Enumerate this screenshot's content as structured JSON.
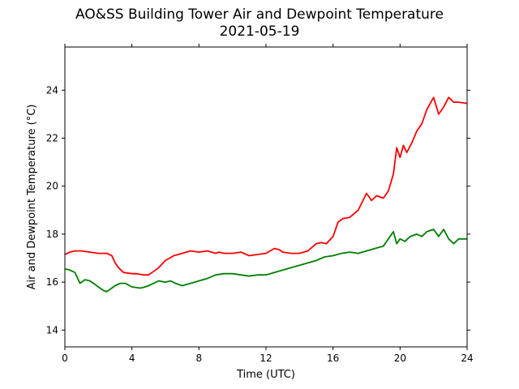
{
  "chart_data": {
    "type": "line",
    "title": "AO&SS Building Tower Air and Dewpoint Temperature",
    "subtitle": "2021-05-19",
    "xlabel": "Time (UTC)",
    "ylabel": "Air and Dewpoint Temperature (°C)",
    "xlim": [
      0,
      24
    ],
    "ylim": [
      13.3,
      25.8
    ],
    "xticks": [
      0,
      4,
      8,
      12,
      16,
      20,
      24
    ],
    "yticks": [
      14,
      16,
      18,
      20,
      22,
      24
    ],
    "grid": false,
    "series": [
      {
        "color": "#ff0000",
        "x": [
          0,
          0.3,
          0.6,
          1.0,
          1.5,
          2.0,
          2.5,
          2.8,
          3.0,
          3.2,
          3.5,
          4.0,
          4.3,
          4.7,
          5.0,
          5.3,
          5.6,
          6.0,
          6.5,
          7.0,
          7.5,
          8.0,
          8.5,
          9.0,
          9.2,
          9.5,
          10.0,
          10.5,
          11.0,
          11.5,
          12.0,
          12.5,
          12.8,
          13.0,
          13.5,
          14.0,
          14.5,
          15.0,
          15.3,
          15.6,
          16.0,
          16.3,
          16.6,
          17.0,
          17.5,
          18.0,
          18.3,
          18.6,
          19.0,
          19.3,
          19.6,
          19.8,
          20.0,
          20.2,
          20.4,
          20.7,
          21.0,
          21.3,
          21.6,
          22.0,
          22.3,
          22.6,
          22.9,
          23.2,
          23.5,
          24.0
        ],
        "y": [
          17.15,
          17.25,
          17.3,
          17.3,
          17.25,
          17.2,
          17.2,
          17.1,
          16.8,
          16.6,
          16.4,
          16.35,
          16.35,
          16.3,
          16.3,
          16.45,
          16.6,
          16.9,
          17.1,
          17.2,
          17.3,
          17.25,
          17.3,
          17.2,
          17.25,
          17.2,
          17.2,
          17.25,
          17.1,
          17.15,
          17.2,
          17.4,
          17.35,
          17.25,
          17.2,
          17.2,
          17.3,
          17.6,
          17.65,
          17.6,
          17.9,
          18.5,
          18.65,
          18.7,
          19.0,
          19.7,
          19.4,
          19.6,
          19.5,
          19.8,
          20.5,
          21.6,
          21.2,
          21.7,
          21.4,
          21.8,
          22.3,
          22.6,
          23.2,
          23.7,
          23.0,
          23.3,
          23.7,
          23.5,
          23.5,
          23.45
        ]
      },
      {
        "color": "#008000",
        "x": [
          0,
          0.3,
          0.6,
          0.9,
          1.2,
          1.5,
          2.0,
          2.3,
          2.5,
          3.0,
          3.3,
          3.6,
          4.0,
          4.5,
          4.8,
          5.0,
          5.3,
          5.6,
          6.0,
          6.3,
          6.6,
          7.0,
          7.5,
          8.0,
          8.5,
          9.0,
          9.5,
          10.0,
          10.5,
          11.0,
          11.5,
          12.0,
          12.5,
          13.0,
          13.5,
          14.0,
          14.5,
          15.0,
          15.5,
          16.0,
          16.5,
          17.0,
          17.5,
          18.0,
          18.5,
          19.0,
          19.3,
          19.6,
          19.8,
          20.0,
          20.3,
          20.6,
          21.0,
          21.3,
          21.6,
          22.0,
          22.3,
          22.6,
          22.9,
          23.2,
          23.5,
          24.0
        ],
        "y": [
          16.55,
          16.5,
          16.4,
          15.95,
          16.1,
          16.05,
          15.8,
          15.65,
          15.6,
          15.85,
          15.95,
          15.95,
          15.8,
          15.75,
          15.8,
          15.85,
          15.95,
          16.05,
          16.0,
          16.05,
          15.95,
          15.85,
          15.95,
          16.05,
          16.15,
          16.3,
          16.35,
          16.35,
          16.3,
          16.25,
          16.3,
          16.3,
          16.4,
          16.5,
          16.6,
          16.7,
          16.8,
          16.9,
          17.05,
          17.1,
          17.2,
          17.25,
          17.2,
          17.3,
          17.4,
          17.5,
          17.8,
          18.1,
          17.6,
          17.8,
          17.7,
          17.9,
          18.0,
          17.9,
          18.1,
          18.2,
          17.9,
          18.2,
          17.8,
          17.6,
          17.8,
          17.8
        ]
      }
    ]
  }
}
